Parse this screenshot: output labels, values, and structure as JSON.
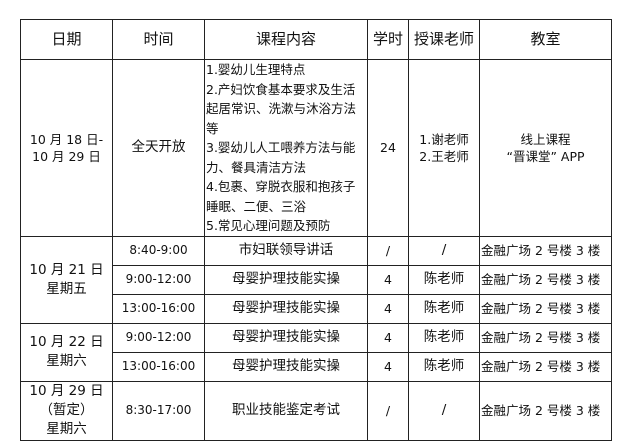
{
  "headers": [
    "日期",
    "时间",
    "课程内容",
    "学时",
    "授课老师",
    "教室"
  ],
  "online_row": {
    "date_lines": [
      "10 月 18 日-",
      "10 月 29 日"
    ],
    "time": "全天开放",
    "content_lines": [
      "1.婴幼儿生理特点",
      "2.产妇饮食基本要求及生活起居常识、洗漱与沐浴方法等",
      "3.婴幼儿人工喂养方法与能力、餐具清洁方法",
      "4.包裹、穿脱衣服和抱孩子睡眠、二便、三浴",
      "5.常见心理问题及预防"
    ],
    "hours": "24",
    "teacher_lines": [
      "1.谢老师",
      "2.王老师"
    ],
    "room_lines": [
      "线上课程",
      "“晋课堂” APP"
    ]
  },
  "groups": [
    {
      "date_lines": [
        "10 月 21 日",
        "星期五"
      ],
      "rows": [
        {
          "time": "8:40-9:00",
          "content": "市妇联领导讲话",
          "hours": "/",
          "teacher": "/",
          "room": "金融广场 2 号楼 3 楼"
        },
        {
          "time": "9:00-12:00",
          "content": "母婴护理技能实操",
          "hours": "4",
          "teacher": "陈老师",
          "room": "金融广场 2 号楼 3 楼"
        },
        {
          "time": "13:00-16:00",
          "content": "母婴护理技能实操",
          "hours": "4",
          "teacher": "陈老师",
          "room": "金融广场 2 号楼 3 楼"
        }
      ]
    },
    {
      "date_lines": [
        "10 月 22 日",
        "星期六"
      ],
      "rows": [
        {
          "time": "9:00-12:00",
          "content": "母婴护理技能实操",
          "hours": "4",
          "teacher": "陈老师",
          "room": "金融广场 2 号楼 3 楼"
        },
        {
          "time": "13:00-16:00",
          "content": "母婴护理技能实操",
          "hours": "4",
          "teacher": "陈老师",
          "room": "金融广场 2 号楼 3 楼"
        }
      ]
    },
    {
      "date_lines": [
        "10 月 29 日",
        "（暂定）",
        "星期六"
      ],
      "rows": [
        {
          "time": "8:30-17:00",
          "content": "职业技能鉴定考试",
          "hours": "/",
          "teacher": "/",
          "room": "金融广场 2 号楼 3 楼"
        }
      ]
    }
  ]
}
